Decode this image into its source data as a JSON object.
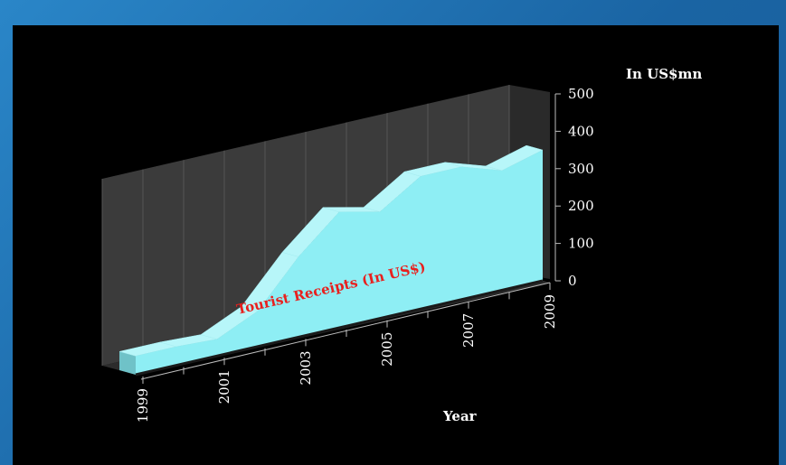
{
  "chart_data": {
    "type": "area",
    "title": "",
    "x": [
      1999,
      2000,
      2001,
      2002,
      2003,
      2004,
      2005,
      2006,
      2007,
      2008,
      2009
    ],
    "series": [
      {
        "name": "Tourist Receipts (In US$)",
        "values": [
          50,
          50,
          45,
          95,
          215,
          310,
          285,
          355,
          355,
          320,
          350
        ]
      }
    ],
    "x_tick_labels": [
      "1999",
      "2001",
      "2003",
      "2005",
      "2007",
      "2009"
    ],
    "y_tick_labels": [
      "0",
      "100",
      "200",
      "300",
      "400",
      "500"
    ],
    "ylim": [
      0,
      500
    ],
    "xlabel": "Year",
    "ylabel": "In US$mn",
    "grid": true,
    "style": "3d",
    "colors": {
      "area_front": "#8eeef4",
      "area_side": "#6fc2c8",
      "area_top": "#b7f6f9",
      "back_wall": "#3b3b3b",
      "floor": "#2c2c2c",
      "background": "#000000",
      "frame": "#1d6fb0",
      "series_label": "#e8201e"
    }
  }
}
